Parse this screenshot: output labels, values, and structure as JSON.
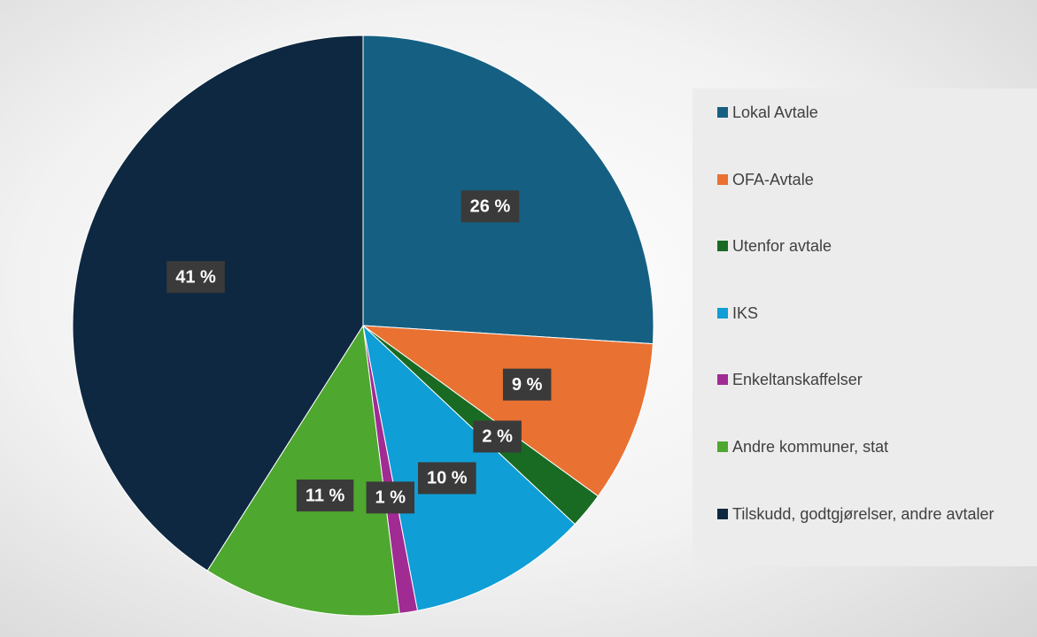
{
  "chart_data": {
    "type": "pie",
    "categories": [
      "Lokal Avtale",
      "OFA-Avtale",
      "Utenfor avtale",
      "IKS",
      "Enkeltanskaffelser",
      "Andre kommuner, stat",
      "Tilskudd, godtgjørelser, andre avtaler"
    ],
    "values": [
      26,
      9,
      2,
      10,
      1,
      11,
      41
    ],
    "value_labels": [
      "26 %",
      "9 %",
      "2 %",
      "10 %",
      "1 %",
      "11 %",
      "41 %"
    ],
    "colors": [
      "#156082",
      "#e97132",
      "#196b24",
      "#0f9ed5",
      "#a02b93",
      "#4ea72e",
      "#0e2841"
    ],
    "legend": "right"
  }
}
